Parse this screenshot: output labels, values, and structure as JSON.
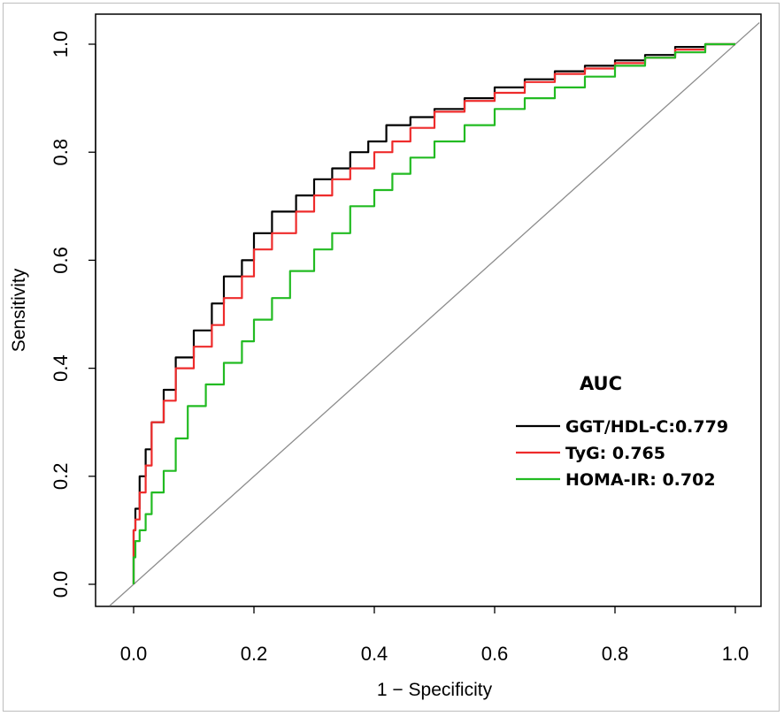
{
  "chart_data": {
    "type": "line",
    "title": "",
    "xlabel": "1 − Specificity",
    "ylabel": "Sensitivity",
    "xlim": [
      0,
      1
    ],
    "ylim": [
      0,
      1
    ],
    "x_ticks": [
      "0.0",
      "0.2",
      "0.4",
      "0.6",
      "0.8",
      "1.0"
    ],
    "y_ticks": [
      "0.0",
      "0.2",
      "0.4",
      "0.6",
      "0.8",
      "1.0"
    ],
    "reference_line": {
      "name": "chance",
      "x": [
        0,
        1
      ],
      "y": [
        0,
        1
      ],
      "color": "#8c8c8c"
    },
    "legend": {
      "title": "AUC",
      "position": "bottom-right"
    },
    "series": [
      {
        "name": "GGT/HDL-C:0.779",
        "color": "#000000",
        "x": [
          0,
          0.003,
          0.01,
          0.02,
          0.03,
          0.05,
          0.07,
          0.1,
          0.13,
          0.15,
          0.18,
          0.2,
          0.23,
          0.27,
          0.3,
          0.33,
          0.36,
          0.39,
          0.42,
          0.46,
          0.5,
          0.55,
          0.6,
          0.65,
          0.7,
          0.75,
          0.8,
          0.85,
          0.9,
          0.95,
          1.0
        ],
        "y": [
          0,
          0.1,
          0.14,
          0.2,
          0.25,
          0.3,
          0.36,
          0.42,
          0.47,
          0.52,
          0.57,
          0.6,
          0.65,
          0.69,
          0.72,
          0.75,
          0.77,
          0.8,
          0.82,
          0.85,
          0.865,
          0.88,
          0.9,
          0.92,
          0.935,
          0.95,
          0.96,
          0.97,
          0.98,
          0.995,
          1.0
        ]
      },
      {
        "name": "TyG: 0.765",
        "color": "#ee2b2b",
        "x": [
          0,
          0.003,
          0.01,
          0.02,
          0.03,
          0.05,
          0.07,
          0.1,
          0.13,
          0.15,
          0.18,
          0.2,
          0.23,
          0.27,
          0.3,
          0.33,
          0.36,
          0.4,
          0.43,
          0.46,
          0.5,
          0.55,
          0.6,
          0.65,
          0.7,
          0.75,
          0.8,
          0.85,
          0.9,
          0.95,
          1.0
        ],
        "y": [
          0,
          0.1,
          0.12,
          0.17,
          0.22,
          0.3,
          0.34,
          0.4,
          0.44,
          0.48,
          0.53,
          0.57,
          0.62,
          0.65,
          0.69,
          0.72,
          0.75,
          0.77,
          0.8,
          0.82,
          0.845,
          0.875,
          0.895,
          0.91,
          0.93,
          0.945,
          0.955,
          0.965,
          0.975,
          0.99,
          1.0
        ]
      },
      {
        "name": "HOMA-IR: 0.702",
        "color": "#22bb22",
        "x": [
          0,
          0.003,
          0.01,
          0.02,
          0.03,
          0.05,
          0.07,
          0.09,
          0.12,
          0.15,
          0.18,
          0.2,
          0.23,
          0.26,
          0.3,
          0.33,
          0.36,
          0.4,
          0.43,
          0.46,
          0.5,
          0.55,
          0.6,
          0.65,
          0.7,
          0.75,
          0.8,
          0.85,
          0.9,
          0.95,
          1.0
        ],
        "y": [
          0,
          0.05,
          0.08,
          0.1,
          0.13,
          0.17,
          0.21,
          0.27,
          0.33,
          0.37,
          0.41,
          0.45,
          0.49,
          0.53,
          0.58,
          0.62,
          0.65,
          0.7,
          0.73,
          0.76,
          0.79,
          0.82,
          0.85,
          0.88,
          0.9,
          0.92,
          0.94,
          0.96,
          0.975,
          0.985,
          1.0
        ]
      }
    ]
  }
}
